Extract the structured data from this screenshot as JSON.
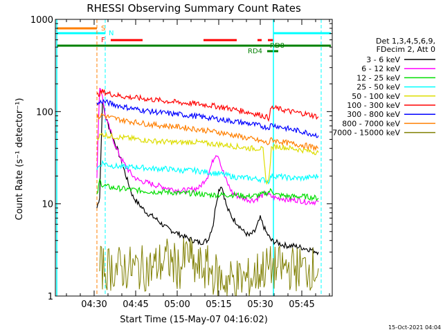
{
  "chart_data": {
    "type": "line",
    "title": "RHESSI Observing Summary Count Rates",
    "xlabel": "Start Time (15-May-07 04:16:02)",
    "ylabel": "Count Rate (s⁻¹ detector⁻¹)",
    "yscale": "log",
    "ylim": [
      1,
      1000
    ],
    "xlim_minutes": [
      0,
      100
    ],
    "x_ticks": [
      {
        "label": "04:30",
        "minute": 14
      },
      {
        "label": "04:45",
        "minute": 29
      },
      {
        "label": "05:00",
        "minute": 44
      },
      {
        "label": "05:15",
        "minute": 59
      },
      {
        "label": "05:30",
        "minute": 74
      },
      {
        "label": "05:45",
        "minute": 89
      }
    ],
    "y_ticks": [
      {
        "label": "1",
        "value": 1
      },
      {
        "label": "10",
        "value": 10
      },
      {
        "label": "100",
        "value": 100
      },
      {
        "label": "1000",
        "value": 1000
      }
    ],
    "legend_header": [
      "Det 1,3,4,5,6,9,",
      "FDecim 2, Att 0"
    ],
    "legend_position": "right",
    "series": [
      {
        "name": "3 - 6 keV",
        "color": "#000000",
        "x": [
          15,
          16,
          17,
          18,
          20,
          22,
          24,
          26,
          28,
          30,
          33,
          36,
          40,
          44,
          48,
          52,
          55,
          57,
          58,
          59,
          60,
          61,
          62,
          64,
          66,
          68,
          70,
          72,
          74,
          76,
          78,
          80,
          82,
          84,
          86,
          88,
          90,
          92,
          95
        ],
        "y": [
          9,
          12,
          130,
          90,
          60,
          42,
          28,
          18,
          12,
          10,
          8,
          7,
          5.5,
          4.8,
          4.2,
          3.8,
          4,
          6,
          10,
          14,
          16,
          12,
          9,
          7,
          6,
          5,
          4.5,
          5,
          7,
          5,
          4,
          3.8,
          3.6,
          3.5,
          3.5,
          3.4,
          3.3,
          3.2,
          3
        ]
      },
      {
        "name": "6 - 12 keV",
        "color": "#ff00ff",
        "x": [
          15,
          16,
          17,
          18,
          20,
          22,
          24,
          26,
          28,
          30,
          33,
          36,
          40,
          44,
          48,
          52,
          55,
          57,
          58,
          59,
          60,
          62,
          64,
          66,
          68,
          70,
          72,
          74,
          76,
          78,
          80,
          82,
          84,
          86,
          88,
          90,
          92,
          95
        ],
        "y": [
          20,
          190,
          150,
          90,
          60,
          40,
          30,
          24,
          20,
          18,
          17,
          16,
          15,
          14,
          14,
          15,
          20,
          30,
          35,
          33,
          25,
          17,
          13,
          12,
          11.5,
          11,
          11,
          12,
          13,
          12,
          11.5,
          11.5,
          11,
          11,
          11,
          10.5,
          10.5,
          10.5
        ]
      },
      {
        "name": "12 - 25 keV",
        "color": "#00dd00",
        "x": [
          15,
          16,
          17,
          20,
          25,
          30,
          35,
          40,
          45,
          50,
          55,
          60,
          65,
          70,
          74,
          76,
          78,
          80,
          85,
          90,
          95
        ],
        "y": [
          12,
          18,
          16,
          15,
          14.5,
          14,
          13.5,
          13.5,
          13,
          13,
          12.5,
          12.5,
          12.5,
          12,
          12.5,
          13,
          14,
          12.5,
          12,
          12,
          11.5
        ]
      },
      {
        "name": "25 - 50 keV",
        "color": "#00ffff",
        "x": [
          15,
          17,
          20,
          25,
          30,
          35,
          40,
          45,
          50,
          55,
          60,
          65,
          70,
          74,
          76,
          77,
          78,
          80,
          85,
          90,
          95
        ],
        "y": [
          24,
          28,
          26,
          25,
          25,
          24,
          24,
          23,
          23,
          22,
          21,
          19.5,
          19,
          18.5,
          18,
          17.5,
          20,
          20,
          19,
          19,
          20
        ]
      },
      {
        "name": "50 - 100 keV",
        "color": "#dddd00",
        "x": [
          15,
          17,
          20,
          25,
          30,
          35,
          40,
          45,
          50,
          55,
          60,
          65,
          70,
          74,
          75,
          76,
          77,
          78,
          80,
          85,
          90,
          95
        ],
        "y": [
          52,
          57,
          54,
          52,
          50,
          48,
          47,
          46,
          47,
          45,
          44,
          42,
          40,
          40,
          38,
          18,
          17,
          40,
          42,
          40,
          38,
          36
        ]
      },
      {
        "name": "100 - 300 keV",
        "color": "#ff0000",
        "x": [
          15,
          17,
          20,
          25,
          30,
          35,
          40,
          45,
          50,
          55,
          60,
          65,
          70,
          74,
          75,
          76,
          77,
          78,
          80,
          85,
          90,
          95
        ],
        "y": [
          150,
          165,
          155,
          145,
          140,
          135,
          130,
          125,
          122,
          118,
          112,
          105,
          98,
          92,
          90,
          88,
          85,
          110,
          108,
          100,
          95,
          88
        ]
      },
      {
        "name": "300 - 800 keV",
        "color": "#0000ff",
        "x": [
          15,
          17,
          20,
          25,
          30,
          35,
          40,
          45,
          50,
          55,
          60,
          65,
          70,
          74,
          75,
          76,
          77,
          78,
          80,
          85,
          90,
          95
        ],
        "y": [
          120,
          130,
          122,
          112,
          105,
          100,
          96,
          93,
          90,
          86,
          82,
          78,
          74,
          70,
          69,
          68,
          67,
          72,
          70,
          64,
          60,
          55
        ]
      },
      {
        "name": "800 - 7000 keV",
        "color": "#ff7f00",
        "x": [
          15,
          17,
          20,
          25,
          30,
          35,
          40,
          45,
          50,
          55,
          60,
          65,
          70,
          74,
          75,
          76,
          77,
          78,
          80,
          85,
          90,
          95
        ],
        "y": [
          85,
          92,
          86,
          80,
          76,
          72,
          70,
          68,
          65,
          62,
          59,
          55,
          51,
          48,
          47,
          46,
          45,
          50,
          48,
          45,
          43,
          40
        ]
      },
      {
        "name": "7000 - 15000 keV",
        "color": "#7f7f00",
        "x": [
          16,
          18,
          20,
          25,
          30,
          35,
          40,
          45,
          48,
          50,
          55,
          60,
          65,
          70,
          75,
          78,
          80,
          85,
          90,
          95
        ],
        "y": [
          2,
          2,
          2,
          2,
          2,
          2,
          2.5,
          2,
          3,
          2,
          2,
          1.5,
          1.5,
          1.5,
          2,
          2,
          2,
          2,
          2,
          2
        ]
      }
    ],
    "annotations": [
      {
        "text": "S",
        "color": "#ff7f00"
      },
      {
        "text": "N",
        "color": "#00ffff"
      },
      {
        "text": "F",
        "color": "#ff0000"
      },
      {
        "text": "RD8",
        "color": "#008000"
      },
      {
        "text": "RD4",
        "color": "#008000"
      }
    ],
    "timestamp": "15-Oct-2021 04:04"
  }
}
